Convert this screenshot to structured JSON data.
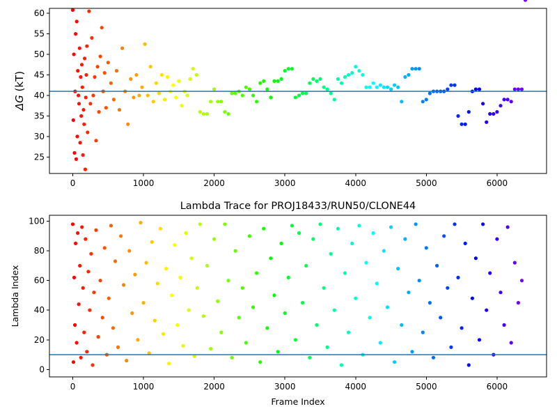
{
  "chart_data": [
    {
      "type": "scatter",
      "title": "",
      "xlabel": "",
      "ylabel_symbol": "ΔG",
      "ylabel_unit": " (kT)",
      "xlim": [
        -330,
        6700
      ],
      "ylim": [
        21,
        61.2
      ],
      "xticks": [
        0,
        1000,
        2000,
        3000,
        4000,
        5000,
        6000
      ],
      "yticks": [
        25,
        30,
        35,
        40,
        45,
        50,
        55,
        60
      ],
      "hline": 41,
      "hline_color": "#1f77b4",
      "colormap": "rainbow (reversed: early frames red, late frames violet)",
      "series": [
        {
          "frames": [
            0,
            8,
            16,
            24,
            32,
            40,
            48,
            56,
            64,
            72,
            80,
            88,
            96,
            104,
            112,
            120,
            128,
            136,
            144,
            152,
            160,
            168,
            176,
            184,
            192,
            200,
            210,
            230,
            250,
            270,
            290,
            310,
            330,
            350,
            370,
            390,
            410,
            430,
            450,
            470,
            500,
            540,
            580,
            620,
            660,
            700,
            740,
            780,
            820,
            860,
            900,
            940,
            980,
            1020,
            1060,
            1100,
            1140,
            1180,
            1220,
            1260,
            1300,
            1340,
            1380,
            1420,
            1460,
            1500,
            1540,
            1580,
            1620,
            1660,
            1700,
            1750,
            1800,
            1850,
            1900,
            1950,
            2000,
            2050,
            2100,
            2150,
            2200,
            2250,
            2300,
            2350,
            2400,
            2450,
            2500,
            2550,
            2600,
            2650,
            2700,
            2750,
            2800,
            2850,
            2900,
            2950,
            3000,
            3050,
            3100,
            3150,
            3200,
            3250,
            3300,
            3350,
            3400,
            3450,
            3500,
            3550,
            3600,
            3650,
            3700,
            3750,
            3800,
            3850,
            3900,
            3950,
            4000,
            4050,
            4100,
            4150,
            4200,
            4250,
            4300,
            4350,
            4400,
            4450,
            4500,
            4550,
            4600,
            4650,
            4700,
            4750,
            4800,
            4850,
            4900,
            4950,
            5000,
            5050,
            5100,
            5150,
            5200,
            5250,
            5300,
            5350,
            5400,
            5450,
            5500,
            5550,
            5600,
            5650,
            5700,
            5750,
            5800,
            5850,
            5900,
            5950,
            6000,
            6050,
            6100,
            6150,
            6200,
            6250,
            6300,
            6350,
            6400
          ],
          "values": [
            60.8,
            34.0,
            50.0,
            26.0,
            41.0,
            55.0,
            24.5,
            58.0,
            30.0,
            46.0,
            40.0,
            38.0,
            51.5,
            28.5,
            44.5,
            35.0,
            47.5,
            42.0,
            25.5,
            36.5,
            33.0,
            49.0,
            22.0,
            39.5,
            45.0,
            52.0,
            31.0,
            60.5,
            38.0,
            54.0,
            40.0,
            44.5,
            29.0,
            47.0,
            36.0,
            49.5,
            56.5,
            41.0,
            45.5,
            37.0,
            48.0,
            43.0,
            39.0,
            46.0,
            36.5,
            51.5,
            41.0,
            33.0,
            44.0,
            39.5,
            45.0,
            40.0,
            42.0,
            52.5,
            40.0,
            47.0,
            38.5,
            43.0,
            40.5,
            45.0,
            39.0,
            44.5,
            41.0,
            42.5,
            39.5,
            43.5,
            37.5,
            41.0,
            40.0,
            44.0,
            46.5,
            45.0,
            36.0,
            35.5,
            35.5,
            38.5,
            41.5,
            38.5,
            38.5,
            36.0,
            35.5,
            40.5,
            40.5,
            41.0,
            40.0,
            42.0,
            41.5,
            40.0,
            38.5,
            43.0,
            43.5,
            41.5,
            39.5,
            43.5,
            43.5,
            44.0,
            46.0,
            46.5,
            46.5,
            39.5,
            40.0,
            40.5,
            40.5,
            43.0,
            44.0,
            43.5,
            44.0,
            42.0,
            41.5,
            40.5,
            39.0,
            44.0,
            43.0,
            44.5,
            45.0,
            45.5,
            47.0,
            46.0,
            45.0,
            42.0,
            42.0,
            43.0,
            42.0,
            42.5,
            42.0,
            42.0,
            41.5,
            42.5,
            42.0,
            38.5,
            44.5,
            45.0,
            46.5,
            46.5,
            46.5,
            38.5,
            39.0,
            40.5,
            41.0,
            41.0,
            41.0,
            41.0,
            41.5,
            42.5,
            42.5,
            35.0,
            33.0,
            33.0,
            36.0,
            41.0,
            41.5,
            41.5,
            38.0,
            33.5,
            35.5,
            35.5,
            36.0,
            37.5,
            39.0,
            39.0,
            38.5,
            41.5,
            41.5,
            41.5
          ]
        }
      ]
    },
    {
      "type": "scatter",
      "title": "Lambda Trace for PROJ18433/RUN50/CLONE44",
      "xlabel": "Frame Index",
      "ylabel": "Lambda Index",
      "xlim": [
        -330,
        6700
      ],
      "ylim": [
        -5,
        104
      ],
      "xticks": [
        0,
        1000,
        2000,
        3000,
        4000,
        5000,
        6000
      ],
      "yticks": [
        0,
        20,
        40,
        60,
        80,
        100
      ],
      "hline": 10,
      "hline_color": "#1f77b4",
      "colormap": "rainbow (reversed: early frames red, late frames violet)",
      "series": [
        {
          "frames": [
            0,
            10,
            20,
            30,
            40,
            55,
            70,
            85,
            100,
            115,
            130,
            145,
            160,
            180,
            200,
            220,
            240,
            260,
            280,
            300,
            330,
            360,
            390,
            420,
            450,
            480,
            510,
            540,
            570,
            600,
            640,
            680,
            720,
            760,
            800,
            840,
            880,
            920,
            960,
            1000,
            1040,
            1080,
            1120,
            1160,
            1200,
            1240,
            1280,
            1320,
            1360,
            1400,
            1440,
            1480,
            1520,
            1560,
            1600,
            1640,
            1680,
            1720,
            1760,
            1800,
            1850,
            1900,
            1950,
            2000,
            2050,
            2100,
            2150,
            2200,
            2250,
            2300,
            2350,
            2400,
            2450,
            2500,
            2550,
            2600,
            2650,
            2700,
            2750,
            2800,
            2850,
            2900,
            2950,
            3000,
            3050,
            3100,
            3150,
            3200,
            3250,
            3300,
            3350,
            3400,
            3450,
            3500,
            3550,
            3600,
            3650,
            3700,
            3750,
            3800,
            3850,
            3900,
            3950,
            4000,
            4050,
            4100,
            4150,
            4200,
            4250,
            4300,
            4350,
            4400,
            4450,
            4500,
            4550,
            4600,
            4650,
            4700,
            4750,
            4800,
            4850,
            4900,
            4950,
            5000,
            5050,
            5100,
            5150,
            5200,
            5250,
            5300,
            5350,
            5400,
            5450,
            5500,
            5550,
            5600,
            5650,
            5700,
            5750,
            5800,
            5850,
            5900,
            5950,
            6000,
            6050,
            6100,
            6150,
            6200,
            6250,
            6300,
            6350,
            6400
          ],
          "values": [
            98,
            5,
            62,
            30,
            85,
            18,
            92,
            44,
            70,
            8,
            96,
            55,
            25,
            88,
            12,
            66,
            40,
            78,
            3,
            52,
            94,
            22,
            60,
            35,
            82,
            10,
            48,
            97,
            28,
            73,
            15,
            90,
            57,
            6,
            80,
            38,
            64,
            20,
            99,
            45,
            72,
            11,
            86,
            33,
            58,
            95,
            24,
            68,
            4,
            50,
            84,
            30,
            62,
            16,
            92,
            40,
            75,
            9,
            55,
            98,
            36,
            70,
            14,
            88,
            46,
            25,
            98,
            60,
            8,
            80,
            35,
            55,
            18,
            90,
            42,
            65,
            5,
            95,
            28,
            75,
            50,
            12,
            85,
            38,
            62,
            97,
            20,
            92,
            45,
            70,
            8,
            88,
            30,
            98,
            55,
            15,
            78,
            40,
            95,
            3,
            65,
            25,
            85,
            48,
            97,
            10,
            72,
            35,
            92,
            58,
            18,
            80,
            42,
            96,
            5,
            68,
            30,
            88,
            52,
            12,
            98,
            60,
            25,
            82,
            45,
            8,
            70,
            35,
            90,
            55,
            15,
            98,
            62,
            28,
            85,
            3,
            48,
            75,
            20,
            98,
            40,
            65,
            10,
            88,
            52,
            30,
            96,
            18,
            72,
            45,
            60
          ]
        }
      ]
    }
  ]
}
